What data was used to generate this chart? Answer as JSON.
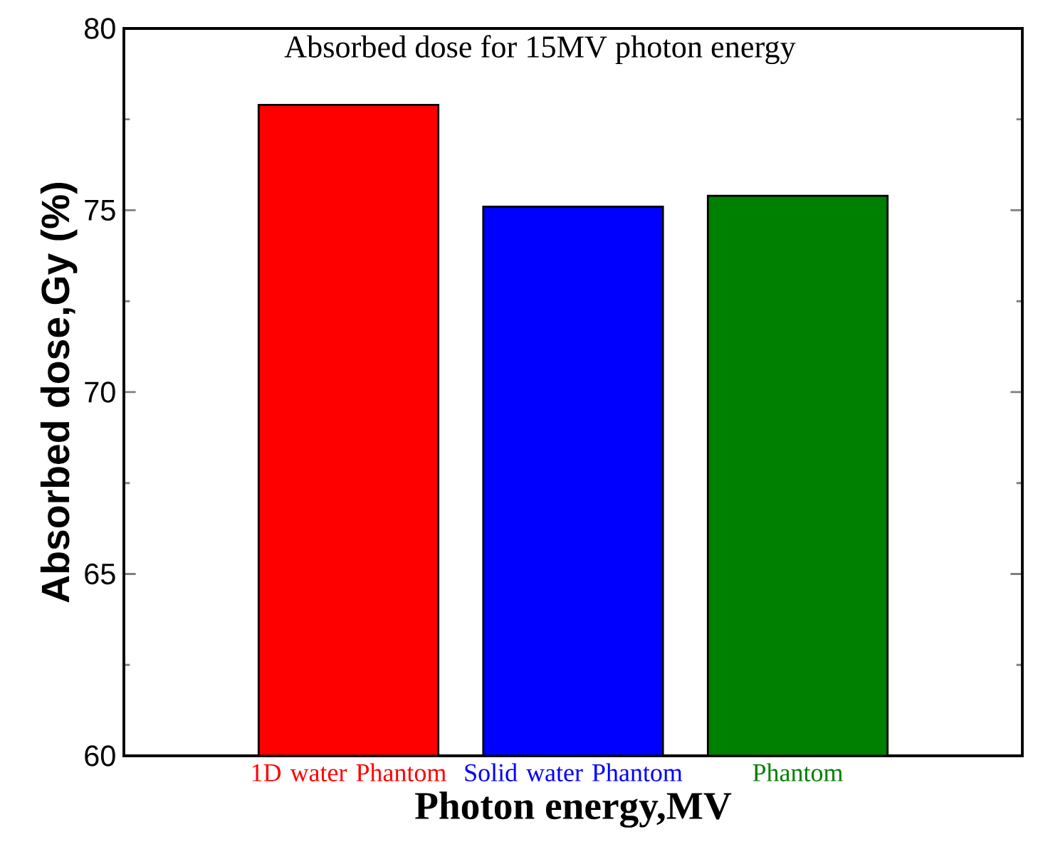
{
  "chart_data": {
    "type": "bar",
    "title": "Absorbed dose for 15MV photon energy",
    "xlabel": "Photon energy,MV",
    "ylabel": "Absorbed dose,Gy (%)",
    "categories": [
      "1D water Phantom",
      "Solid water Phantom",
      "Phantom"
    ],
    "values": [
      77.9,
      75.1,
      75.4
    ],
    "colors": [
      "#ff0000",
      "#0000ff",
      "#008000"
    ],
    "ylim": [
      60,
      80
    ],
    "yticks": [
      60,
      65,
      70,
      75,
      80
    ]
  }
}
